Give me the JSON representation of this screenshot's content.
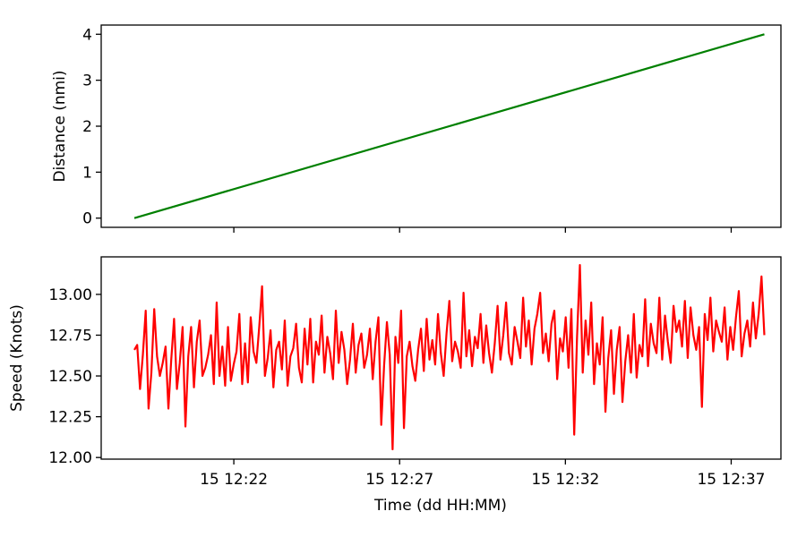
{
  "chart_data": [
    {
      "type": "line",
      "panel": "top",
      "ylabel": "Distance (nmi)",
      "xlabel": "",
      "xlim": [
        "15 12:18:00",
        "15 12:38:30"
      ],
      "ylim": [
        -0.2,
        4.2
      ],
      "x_ticks": [
        "15 12:22",
        "15 12:27",
        "15 12:32",
        "15 12:37"
      ],
      "x_tick_labels_visible": false,
      "y_ticks": [
        0,
        1,
        2,
        3,
        4
      ],
      "y_tick_labels": [
        "0",
        "1",
        "2",
        "3",
        "4"
      ],
      "grid": false,
      "series": [
        {
          "color": "#008000",
          "x": [
            "15 12:19:00",
            "15 12:38:00"
          ],
          "y": [
            0.0,
            4.0
          ]
        }
      ]
    },
    {
      "type": "line",
      "panel": "bottom",
      "ylabel": "Speed (Knots)",
      "xlabel": "Time (dd HH:MM)",
      "xlim": [
        "15 12:18:00",
        "15 12:38:30"
      ],
      "ylim": [
        11.99,
        13.23
      ],
      "x_ticks": [
        "15 12:22",
        "15 12:27",
        "15 12:32",
        "15 12:37"
      ],
      "x_tick_labels": [
        "15 12:22",
        "15 12:27",
        "15 12:32",
        "15 12:37"
      ],
      "y_ticks": [
        12.0,
        12.25,
        12.5,
        12.75,
        13.0
      ],
      "y_tick_labels": [
        "12.00",
        "12.25",
        "12.50",
        "12.75",
        "13.00"
      ],
      "grid": false,
      "series": [
        {
          "color": "#ff0000",
          "x_start": "15 12:19:00",
          "x_end": "15 12:38:00",
          "y": [
            12.66,
            12.69,
            12.42,
            12.63,
            12.9,
            12.3,
            12.52,
            12.91,
            12.62,
            12.5,
            12.58,
            12.68,
            12.3,
            12.6,
            12.85,
            12.42,
            12.58,
            12.8,
            12.19,
            12.62,
            12.8,
            12.43,
            12.71,
            12.84,
            12.5,
            12.55,
            12.63,
            12.75,
            12.45,
            12.95,
            12.5,
            12.68,
            12.44,
            12.8,
            12.47,
            12.57,
            12.65,
            12.88,
            12.45,
            12.7,
            12.46,
            12.86,
            12.65,
            12.58,
            12.8,
            13.05,
            12.5,
            12.61,
            12.78,
            12.43,
            12.66,
            12.71,
            12.54,
            12.84,
            12.44,
            12.62,
            12.67,
            12.82,
            12.55,
            12.46,
            12.79,
            12.57,
            12.85,
            12.46,
            12.71,
            12.63,
            12.87,
            12.52,
            12.74,
            12.64,
            12.48,
            12.9,
            12.58,
            12.77,
            12.66,
            12.45,
            12.6,
            12.82,
            12.52,
            12.69,
            12.76,
            12.55,
            12.63,
            12.79,
            12.48,
            12.71,
            12.86,
            12.2,
            12.56,
            12.83,
            12.63,
            12.05,
            12.74,
            12.58,
            12.9,
            12.18,
            12.62,
            12.71,
            12.56,
            12.47,
            12.66,
            12.79,
            12.53,
            12.85,
            12.6,
            12.72,
            12.57,
            12.88,
            12.64,
            12.5,
            12.76,
            12.96,
            12.59,
            12.71,
            12.65,
            12.55,
            13.01,
            12.62,
            12.78,
            12.56,
            12.74,
            12.67,
            12.88,
            12.58,
            12.81,
            12.64,
            12.52,
            12.7,
            12.93,
            12.6,
            12.75,
            12.95,
            12.64,
            12.57,
            12.8,
            12.71,
            12.61,
            12.98,
            12.68,
            12.84,
            12.57,
            12.79,
            12.88,
            13.01,
            12.64,
            12.76,
            12.59,
            12.82,
            12.9,
            12.48,
            12.73,
            12.65,
            12.86,
            12.55,
            12.91,
            12.14,
            12.74,
            13.18,
            12.52,
            12.84,
            12.63,
            12.95,
            12.45,
            12.7,
            12.57,
            12.86,
            12.28,
            12.61,
            12.78,
            12.39,
            12.66,
            12.8,
            12.34,
            12.59,
            12.75,
            12.52,
            12.88,
            12.49,
            12.69,
            12.62,
            12.97,
            12.56,
            12.82,
            12.7,
            12.64,
            12.98,
            12.6,
            12.87,
            12.71,
            12.58,
            12.93,
            12.77,
            12.84,
            12.68,
            12.96,
            12.61,
            12.92,
            12.75,
            12.66,
            12.8,
            12.31,
            12.88,
            12.72,
            12.98,
            12.65,
            12.84,
            12.77,
            12.71,
            12.92,
            12.6,
            12.8,
            12.66,
            12.86,
            13.02,
            12.62,
            12.76,
            12.84,
            12.68,
            12.95,
            12.73,
            12.88,
            13.11,
            12.75
          ]
        }
      ]
    }
  ]
}
